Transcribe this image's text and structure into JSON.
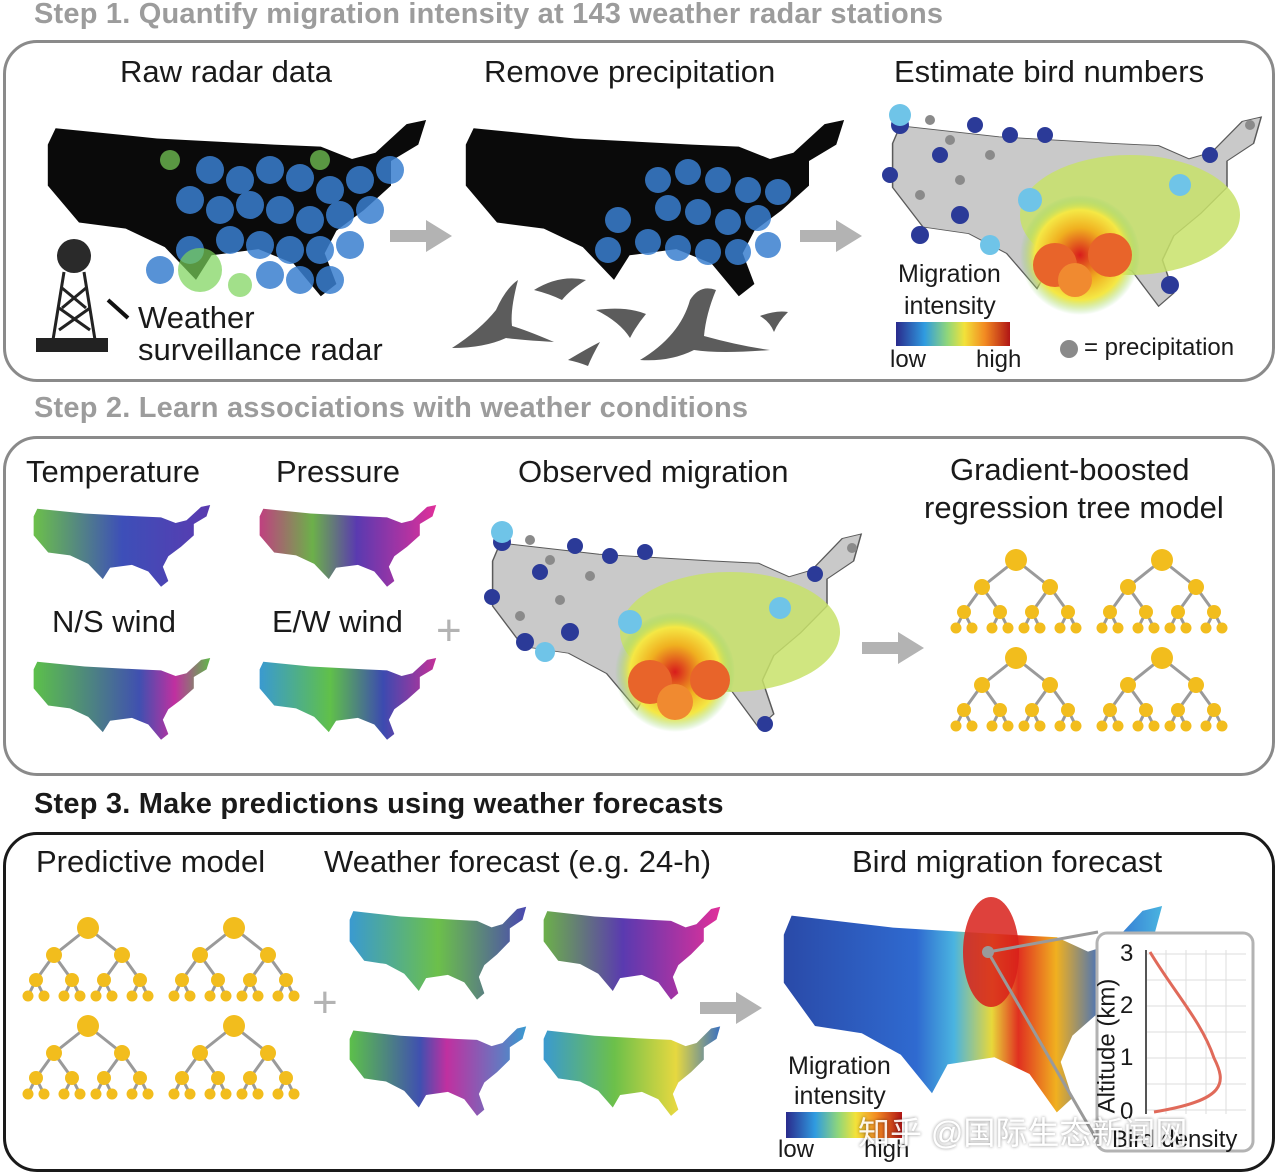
{
  "step1": {
    "title": "Step 1. Quantify migration intensity at 143 weather radar stations",
    "raw_label": "Raw radar data",
    "remove_label": "Remove precipitation",
    "estimate_label": "Estimate bird numbers",
    "radar_label_1": "Weather",
    "radar_label_2": "surveillance radar",
    "legend_title_1": "Migration",
    "legend_title_2": "intensity",
    "legend_low": "low",
    "legend_high": "high",
    "precip_note": "= precipitation"
  },
  "step2": {
    "title": "Step 2. Learn associations with weather conditions",
    "temperature": "Temperature",
    "pressure": "Pressure",
    "ns_wind": "N/S wind",
    "ew_wind": "E/W wind",
    "observed": "Observed migration",
    "model_1": "Gradient-boosted",
    "model_2": "regression tree model"
  },
  "step3": {
    "title": "Step 3. Make predictions using weather forecasts",
    "predictive": "Predictive model",
    "forecast": "Weather forecast (e.g. 24-h)",
    "bird_forecast": "Bird migration forecast",
    "legend_title_1": "Migration",
    "legend_title_2": "intensity",
    "legend_low": "low",
    "legend_high": "high",
    "inset_ylabel": "Altitude (km)",
    "inset_xlabel": "Bird density",
    "inset_ticks": [
      "0",
      "1",
      "2",
      "3"
    ]
  },
  "symbols": {
    "plus": "+"
  },
  "watermark": "知乎 @国际生态新闻网",
  "colors": {
    "panel_border": "#8a8a8a",
    "step3_border": "#1a1a1a",
    "tree": "#f2bd1d",
    "arrow": "#b3b3b3"
  }
}
